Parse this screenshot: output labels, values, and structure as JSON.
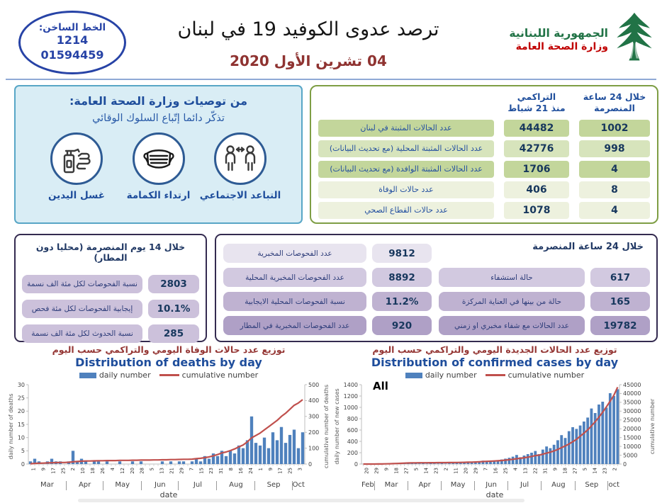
{
  "header": {
    "hotline": {
      "label": "الخط الساخن:",
      "numbers": [
        "1214",
        "01594459"
      ]
    },
    "title": "ترصد عدوى الكوفيد 19 في لبنان",
    "date": "04 تشرين الأول 2020",
    "ministry": {
      "line1": "الجمهورية اللبنانية",
      "line2": "وزارة الصحة العامة"
    }
  },
  "recommendations": {
    "title": "من توصيات وزارة الصحة العامة:",
    "subtitle": "تذكّر دائما إتّباع السلوك الوقائي",
    "items": [
      {
        "label": "التباعد الاجتماعي",
        "icon": "social-distancing-icon"
      },
      {
        "label": "ارتداء الكمامة",
        "icon": "face-mask-icon"
      },
      {
        "label": "غسل اليدين",
        "icon": "hand-washing-icon"
      }
    ]
  },
  "stats_table": {
    "col_24h": {
      "line1": "خلال 24 ساعة",
      "line2": "المنصرمة"
    },
    "col_cumulative": {
      "line1": "التراكمي",
      "line2": "منذ 21 شباط"
    },
    "rows": [
      {
        "label": "عدد الحالات المثبتة في لبنان",
        "cumulative": "44482",
        "last24": "1002",
        "tone": "t-green"
      },
      {
        "label": "عدد الحالات المثبتة المحلية (مع تحديث البيانات)",
        "cumulative": "42776",
        "last24": "998",
        "tone": "t-greenlight"
      },
      {
        "label": "عدد الحالات المثبتة الوافدة (مع تحديث البيانات)",
        "cumulative": "1706",
        "last24": "4",
        "tone": "t-green"
      },
      {
        "label": "عدد حالات الوفاة",
        "cumulative": "406",
        "last24": "8",
        "tone": "t-pale"
      },
      {
        "label": "عدد حالات القطاع الصحي",
        "cumulative": "1078",
        "last24": "4",
        "tone": "t-pale"
      }
    ]
  },
  "fourteen_day_box": {
    "title": "خلال 14 يوم المنصرمة (محليا دون المطار)",
    "rows": [
      {
        "label": "نسبة الفحوصات لكل مئة الف نسمة",
        "value": "2803"
      },
      {
        "label": "إيجابية الفحوصات لكل مئة فحص",
        "value": "10.1%"
      },
      {
        "label": "نسبة الحدوث لكل مئة الف نسمة",
        "value": "285"
      }
    ]
  },
  "tests_box": {
    "title": "خلال 24 ساعة المنصرمة",
    "left_rows": [
      {
        "label": "عدد الفحوصات المخبرية",
        "value": "9812"
      },
      {
        "label": "عدد الفحوصات المخبرية المحلية",
        "value": "8892"
      },
      {
        "label": "نسبة الفحوصات المحلية الايجابية",
        "value": "11.2%"
      },
      {
        "label": "عدد الفحوصات المخبرية في المطار",
        "value": "920"
      }
    ],
    "right_rows": [
      {
        "label": "حالة استشفاء",
        "value": "617"
      },
      {
        "label": "حالة من بينها في العناية المركزة",
        "value": "165"
      },
      {
        "label": "عدد الحالات مع شفاء مخبري او زمني",
        "value": "19782"
      }
    ]
  },
  "colors": {
    "accent_blue": "#1F4E9C",
    "dark_navy": "#17375D",
    "title_red": "#953735",
    "green_row": "#C3D69B",
    "green_row_light": "#D7E4BC",
    "pale_row": "#EDF1DE",
    "green_border": "#7E9E45",
    "purple_border": "#342B50",
    "lavender": "#CCC1DB",
    "purple_shades": [
      "#E8E4EF",
      "#D2C9E0",
      "#BFB2D1",
      "#AFA0C6"
    ],
    "bar_blue": "#4F81BD",
    "line_red": "#C0504D",
    "logo_green": "#217346",
    "logo_red": "#C00000",
    "hotline_blue": "#2743A6"
  },
  "chart_data": [
    {
      "type": "bar+line",
      "title_ar": "توزيع عدد حالات الوفاة اليومي والتراكمي حسب اليوم",
      "title_en": "Distribution of deaths by day",
      "annotation": "",
      "legend": [
        "daily number",
        "cumulative number"
      ],
      "xlabel": "date",
      "ylabel_left": "daily number of deaths",
      "ylabel_right": "cumulative number of deaths",
      "ylim_left": [
        0,
        30
      ],
      "yticks_left": [
        0,
        5,
        10,
        15,
        20,
        25,
        30
      ],
      "ylim_right": [
        0,
        500
      ],
      "yticks_right": [
        0,
        100,
        200,
        300,
        400,
        500
      ],
      "x_tick_labels": [
        "1",
        "9",
        "17",
        "25",
        "2",
        "10",
        "18",
        "26",
        "4",
        "12",
        "20",
        "28",
        "5",
        "13",
        "21",
        "29",
        "7",
        "15",
        "23",
        "31",
        "8",
        "16",
        "24",
        "1",
        "9",
        "17",
        "25",
        "3"
      ],
      "months": [
        {
          "label": "Mar",
          "span": 31
        },
        {
          "label": "Apr",
          "span": 30
        },
        {
          "label": "May",
          "span": 31
        },
        {
          "label": "Jun",
          "span": 30
        },
        {
          "label": "Jul",
          "span": 31
        },
        {
          "label": "Aug",
          "span": 31
        },
        {
          "label": "Sep",
          "span": 30
        },
        {
          "label": "Oct",
          "span": 4
        }
      ],
      "series": [
        {
          "name": "daily number",
          "kind": "bar",
          "axis": "left",
          "color": "#4F81BD",
          "values": [
            1,
            2,
            1,
            0,
            1,
            2,
            1,
            1,
            0,
            1,
            5,
            1,
            2,
            1,
            0,
            1,
            1,
            0,
            1,
            0,
            0,
            1,
            0,
            0,
            1,
            0,
            1,
            0,
            0,
            0,
            0,
            1,
            0,
            1,
            0,
            1,
            1,
            0,
            1,
            2,
            1,
            3,
            2,
            4,
            3,
            5,
            3,
            5,
            4,
            7,
            6,
            9,
            18,
            8,
            7,
            10,
            6,
            12,
            9,
            14,
            8,
            11,
            13,
            6,
            12
          ]
        },
        {
          "name": "cumulative number",
          "kind": "line",
          "axis": "right",
          "color": "#C0504D",
          "values": [
            2,
            4,
            5,
            6,
            7,
            8,
            9,
            10,
            10,
            11,
            14,
            16,
            18,
            19,
            19,
            20,
            21,
            21,
            22,
            22,
            22,
            23,
            23,
            23,
            24,
            24,
            25,
            25,
            25,
            26,
            26,
            27,
            27,
            28,
            28,
            29,
            30,
            30,
            31,
            34,
            36,
            40,
            45,
            52,
            60,
            70,
            76,
            85,
            95,
            108,
            120,
            140,
            165,
            180,
            195,
            215,
            235,
            255,
            275,
            300,
            320,
            345,
            370,
            385,
            406
          ]
        }
      ]
    },
    {
      "type": "bar+line",
      "title_ar": "توزيع عدد الحالات الجديدة اليومي والتراكمي حسب اليوم",
      "title_en": "Distribution of confirmed cases by day",
      "annotation": "All",
      "legend": [
        "daily number",
        "cumulative number"
      ],
      "xlabel": "date",
      "ylabel_left": "daily number of new cases",
      "ylabel_right": "cumulative number",
      "ylim_left": [
        0,
        1400
      ],
      "yticks_left": [
        0,
        200,
        400,
        600,
        800,
        1000,
        1200,
        1400
      ],
      "ylim_right": [
        0,
        45000
      ],
      "yticks_right": [
        0,
        5000,
        10000,
        15000,
        20000,
        25000,
        30000,
        35000,
        40000,
        45000
      ],
      "x_tick_labels": [
        "20",
        "29",
        "9",
        "18",
        "27",
        "5",
        "14",
        "23",
        "2",
        "11",
        "20",
        "29",
        "7",
        "16",
        "25",
        "4",
        "13",
        "22",
        "31",
        "9",
        "18",
        "27",
        "5",
        "14",
        "23",
        "2"
      ],
      "months": [
        {
          "label": "Feb",
          "span": 9
        },
        {
          "label": "Mar",
          "span": 31
        },
        {
          "label": "Apr",
          "span": 30
        },
        {
          "label": "May",
          "span": 31
        },
        {
          "label": "Jun",
          "span": 30
        },
        {
          "label": "Jul",
          "span": 31
        },
        {
          "label": "Aug",
          "span": 31
        },
        {
          "label": "Sep",
          "span": 30
        },
        {
          "label": "oct",
          "span": 3
        }
      ],
      "series": [
        {
          "name": "daily number",
          "kind": "bar",
          "axis": "left",
          "color": "#4F81BD",
          "values": [
            1,
            0,
            2,
            1,
            3,
            5,
            8,
            12,
            15,
            20,
            18,
            25,
            22,
            17,
            15,
            10,
            12,
            8,
            14,
            10,
            9,
            12,
            8,
            11,
            12,
            20,
            30,
            25,
            40,
            35,
            28,
            45,
            60,
            50,
            40,
            55,
            65,
            80,
            95,
            110,
            130,
            160,
            120,
            150,
            175,
            200,
            230,
            175,
            255,
            310,
            280,
            340,
            420,
            510,
            460,
            580,
            650,
            620,
            680,
            750,
            820,
            980,
            900,
            1050,
            1100,
            995,
            1250,
            1200,
            1320
          ]
        },
        {
          "name": "cumulative number",
          "kind": "line",
          "axis": "right",
          "color": "#C0504D",
          "values": [
            2,
            4,
            8,
            13,
            30,
            60,
            110,
            170,
            250,
            340,
            420,
            520,
            600,
            670,
            690,
            710,
            725,
            740,
            755,
            770,
            785,
            800,
            815,
            830,
            850,
            880,
            920,
            970,
            1030,
            1100,
            1180,
            1280,
            1400,
            1530,
            1620,
            1730,
            1860,
            2020,
            2210,
            2440,
            2700,
            3000,
            3250,
            3560,
            3910,
            4310,
            4780,
            5060,
            5570,
            6200,
            6760,
            7450,
            8290,
            9310,
            10230,
            11390,
            12690,
            14000,
            15800,
            17500,
            19400,
            21600,
            24000,
            26600,
            29400,
            32400,
            35600,
            39000,
            43600
          ]
        }
      ]
    }
  ]
}
